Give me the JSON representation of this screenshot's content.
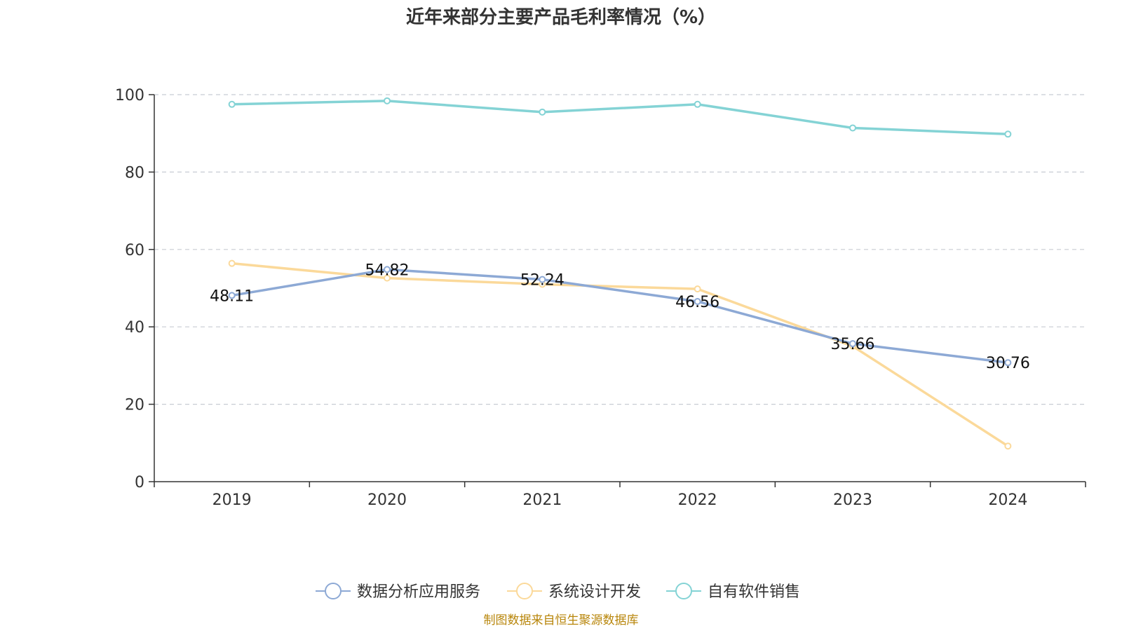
{
  "chart_data": {
    "type": "line",
    "title": "近年来部分主要产品毛利率情况（%）",
    "categories": [
      "2019",
      "2020",
      "2021",
      "2022",
      "2023",
      "2024"
    ],
    "ylim": [
      0,
      100
    ],
    "yticks": [
      "0",
      "20",
      "40",
      "60",
      "80",
      "100"
    ],
    "grid": true,
    "legend_position": "bottom-center",
    "series": [
      {
        "name": "数据分析应用服务",
        "color": "#8da9d5",
        "values": [
          48.11,
          54.82,
          52.24,
          46.56,
          35.66,
          30.76
        ],
        "labels": [
          "48.11",
          "54.82",
          "52.24",
          "46.56",
          "35.66",
          "30.76"
        ]
      },
      {
        "name": "系统设计开发",
        "color": "#fbd99a",
        "values": [
          56.4,
          52.6,
          51.0,
          49.8,
          35.0,
          9.2
        ],
        "labels": []
      },
      {
        "name": "自有软件销售",
        "color": "#84d3d5",
        "values": [
          97.5,
          98.4,
          95.5,
          97.5,
          91.4,
          89.8
        ],
        "labels": []
      }
    ]
  },
  "source": "制图数据来自恒生聚源数据库"
}
